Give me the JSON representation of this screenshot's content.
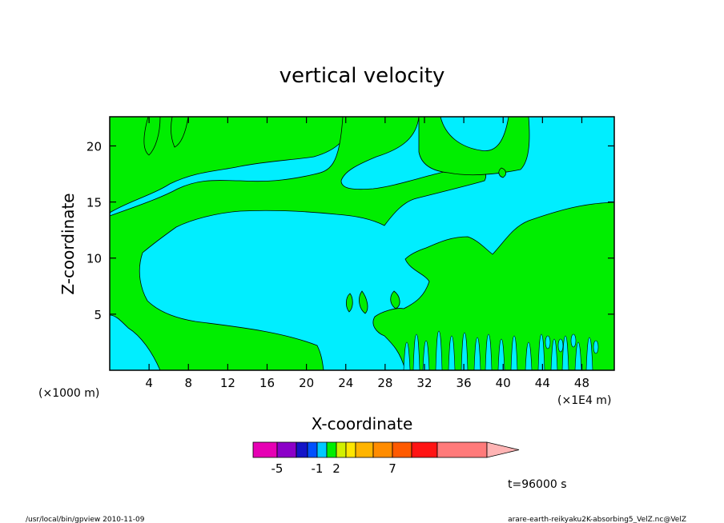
{
  "chart_data": {
    "type": "heatmap",
    "subtype": "filled-contour",
    "title": "vertical velocity",
    "xlabel": "X-coordinate",
    "ylabel": "Z-coordinate",
    "x_unit": "(×1E4 m)",
    "y_unit": "(×1000 m)",
    "x_ticks": [
      4,
      8,
      12,
      16,
      20,
      24,
      28,
      32,
      36,
      40,
      44,
      48
    ],
    "y_ticks": [
      5,
      10,
      15,
      20
    ],
    "xlim": [
      0,
      51.3
    ],
    "ylim": [
      0,
      22.6
    ],
    "colors": {
      "positive_region": "#00ee00",
      "negative_region": "#00eeff",
      "frame": "#000000"
    },
    "colorbar": {
      "levels": [
        "-5",
        "-1",
        "2",
        "7"
      ],
      "colors": [
        "#e600b4",
        "#8c00c8",
        "#1414c8",
        "#0050ff",
        "#00c8ff",
        "#00ee00",
        "#d2f000",
        "#ffe600",
        "#ffb400",
        "#ff8c00",
        "#ff5a00",
        "#ff1414",
        "#ff7a7a",
        "#ffb4b4"
      ],
      "extend": "max"
    },
    "time_label": "t=96000 s",
    "footer_left": "/usr/local/bin/gpview   2010-11-09",
    "footer_right": "arare-earth-reikyaku2K-absorbing5_VelZ.nc@VelZ"
  }
}
